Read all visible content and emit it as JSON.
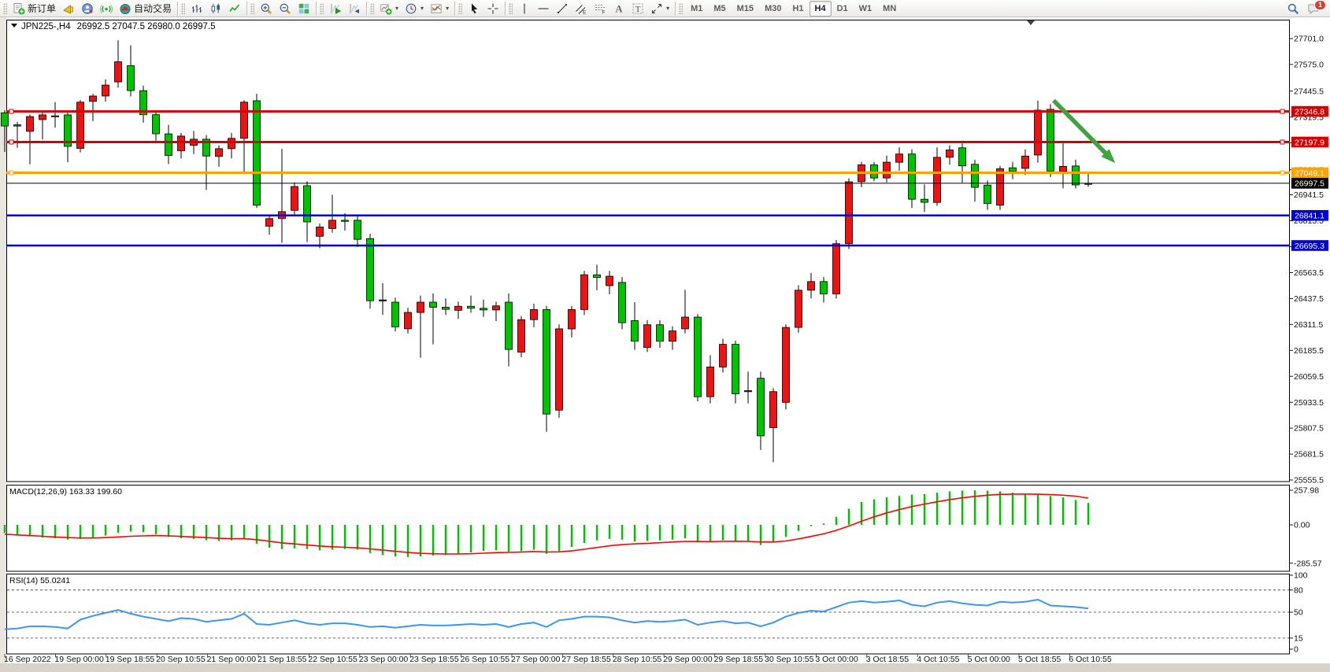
{
  "toolbar": {
    "groups": [
      {
        "items": [
          {
            "name": "new-order-button",
            "icon": "new-order-icon",
            "label": "新订单"
          },
          {
            "name": "alerts-button",
            "icon": "horn-icon"
          },
          {
            "name": "community-button",
            "icon": "community-icon"
          },
          {
            "name": "signals-button",
            "icon": "signal-icon"
          },
          {
            "name": "autotrading-button",
            "icon": "autotrading-icon",
            "label": "自动交易"
          }
        ]
      },
      {
        "items": [
          {
            "name": "bar-chart-button",
            "icon": "bars-icon"
          },
          {
            "name": "candlestick-button",
            "icon": "candles-icon"
          },
          {
            "name": "line-chart-button",
            "icon": "linechart-icon"
          }
        ]
      },
      {
        "items": [
          {
            "name": "zoom-in-button",
            "icon": "zoom-in-icon"
          },
          {
            "name": "zoom-out-button",
            "icon": "zoom-out-icon"
          },
          {
            "name": "tile-windows-button",
            "icon": "tiles-icon"
          }
        ]
      },
      {
        "items": [
          {
            "name": "auto-scroll-button",
            "icon": "autoscroll-icon"
          },
          {
            "name": "chart-shift-button",
            "icon": "chartshift-icon"
          }
        ]
      },
      {
        "items": [
          {
            "name": "new-chart-button",
            "icon": "chart-plus-icon",
            "caret": true
          },
          {
            "name": "profiles-button",
            "icon": "clock-icon",
            "caret": true
          },
          {
            "name": "indicators-button",
            "icon": "indicator-icon",
            "caret": true
          }
        ]
      },
      {
        "items": [
          {
            "name": "cursor-button",
            "icon": "cursor-icon"
          },
          {
            "name": "crosshair-button",
            "icon": "crosshair-icon"
          }
        ]
      },
      {
        "items": [
          {
            "name": "vertical-line-button",
            "icon": "vline-icon"
          },
          {
            "name": "horizontal-line-button",
            "icon": "hline-icon"
          },
          {
            "name": "trendline-button",
            "icon": "trendline-icon"
          },
          {
            "name": "channel-button",
            "icon": "channel-icon"
          },
          {
            "name": "fibonacci-button",
            "icon": "fibo-icon"
          },
          {
            "name": "text-button",
            "icon": "text-a-icon"
          },
          {
            "name": "label-button",
            "icon": "label-t-icon"
          },
          {
            "name": "shapes-button",
            "icon": "arrows-icon",
            "caret": true
          }
        ]
      }
    ],
    "timeframes": {
      "items": [
        "M1",
        "M5",
        "M15",
        "M30",
        "H1",
        "H4",
        "D1",
        "W1",
        "MN"
      ],
      "active": "H4"
    },
    "right": [
      {
        "name": "search-button",
        "icon": "search-icon"
      },
      {
        "name": "chat-button",
        "icon": "chat-icon",
        "badge": "1"
      }
    ]
  },
  "chart": {
    "title_symbol": "JPN225-,H4",
    "title_ohlc": "26992.5 27047.5 26980.0 26997.5"
  },
  "chart_data": [
    {
      "type": "candlestick",
      "title": "JPN225-,H4 26992.5 27047.5 26980.0 26997.5",
      "symbol": "JPN225-",
      "period": "H4",
      "current_bar": {
        "open": 26992.5,
        "high": 27047.5,
        "low": 26980.0,
        "close": 26997.5
      },
      "ylim": [
        25555.5,
        27701.0
      ],
      "y_ticks": [
        27701.0,
        27575.0,
        27445.5,
        27319.5,
        27193.5,
        27063.5,
        26941.5,
        26815.5,
        26689.5,
        26563.5,
        26437.5,
        26311.5,
        26185.5,
        26059.5,
        25933.5,
        25807.5,
        25681.5,
        25555.5
      ],
      "x_labels": [
        "16 Sep 2022",
        "19 Sep 00:00",
        "19 Sep 18:55",
        "20 Sep 10:55",
        "21 Sep 00:00",
        "21 Sep 18:55",
        "22 Sep 10:55",
        "23 Sep 00:00",
        "23 Sep 18:55",
        "26 Sep 10:55",
        "27 Sep 00:00",
        "27 Sep 18:55",
        "28 Sep 10:55",
        "29 Sep 00:00",
        "29 Sep 18:55",
        "30 Sep 10:55",
        "3 Oct 00:00",
        "3 Oct 18:55",
        "4 Oct 10:55",
        "5 Oct 00:00",
        "5 Oct 18:55",
        "6 Oct 10:55"
      ],
      "up_color": "#ed1313",
      "down_color": "#00c300",
      "wick_color": "#000000",
      "grid": false,
      "candles": [
        [
          27340,
          27352,
          27150,
          27276
        ],
        [
          27276,
          27296,
          27170,
          27282
        ],
        [
          27250,
          27332,
          27090,
          27322
        ],
        [
          27307,
          27342,
          27210,
          27330
        ],
        [
          27326,
          27392,
          27268,
          27324
        ],
        [
          27330,
          27352,
          27100,
          27177
        ],
        [
          27167,
          27402,
          27148,
          27392
        ],
        [
          27396,
          27432,
          27300,
          27422
        ],
        [
          27422,
          27502,
          27394,
          27475
        ],
        [
          27490,
          27693,
          27462,
          27588
        ],
        [
          27569,
          27668,
          27420,
          27448
        ],
        [
          27448,
          27472,
          27292,
          27331
        ],
        [
          27331,
          27352,
          27205,
          27238
        ],
        [
          27238,
          27282,
          27091,
          27133
        ],
        [
          27155,
          27242,
          27118,
          27227
        ],
        [
          27182,
          27252,
          27140,
          27212
        ],
        [
          27212,
          27232,
          26965,
          27130
        ],
        [
          27128,
          27182,
          27078,
          27166
        ],
        [
          27166,
          27242,
          27118,
          27216
        ],
        [
          27216,
          27402,
          27042,
          27392
        ],
        [
          27399,
          27432,
          26878,
          26891
        ],
        [
          26789,
          26842,
          26748,
          26826
        ],
        [
          26826,
          27164,
          26708,
          26860
        ],
        [
          26866,
          27002,
          26838,
          26982
        ],
        [
          26986,
          27008,
          26712,
          26810
        ],
        [
          26740,
          26802,
          26682,
          26785
        ],
        [
          26778,
          26942,
          26758,
          26818
        ],
        [
          26818,
          26852,
          26768,
          26814
        ],
        [
          26818,
          26842,
          26688,
          26725
        ],
        [
          26729,
          26752,
          26388,
          26427
        ],
        [
          26427,
          26512,
          26358,
          26431
        ],
        [
          26420,
          26442,
          26278,
          26300
        ],
        [
          26290,
          26392,
          26268,
          26370
        ],
        [
          26370,
          26452,
          26150,
          26420
        ],
        [
          26420,
          26462,
          26215,
          26395
        ],
        [
          26395,
          26438,
          26358,
          26385
        ],
        [
          26380,
          26422,
          26338,
          26400
        ],
        [
          26400,
          26452,
          26368,
          26390
        ],
        [
          26390,
          26432,
          26348,
          26382
        ],
        [
          26382,
          26422,
          26328,
          26402
        ],
        [
          26420,
          26462,
          26108,
          26190
        ],
        [
          26177,
          26352,
          26152,
          26335
        ],
        [
          26335,
          26412,
          26298,
          26384
        ],
        [
          26384,
          26402,
          25790,
          25876
        ],
        [
          25895,
          26312,
          25858,
          26290
        ],
        [
          26290,
          26402,
          26248,
          26384
        ],
        [
          26384,
          26572,
          26358,
          26553
        ],
        [
          26553,
          26602,
          26478,
          26540
        ],
        [
          26500,
          26572,
          26458,
          26546
        ],
        [
          26516,
          26542,
          26288,
          26320
        ],
        [
          26330,
          26420,
          26188,
          26230
        ],
        [
          26200,
          26332,
          26178,
          26310
        ],
        [
          26310,
          26332,
          26198,
          26230
        ],
        [
          26230,
          26302,
          26188,
          26280
        ],
        [
          26290,
          26480,
          26268,
          26347
        ],
        [
          26347,
          26362,
          25938,
          25960
        ],
        [
          25960,
          26162,
          25928,
          26105
        ],
        [
          26105,
          26242,
          26078,
          26215
        ],
        [
          26215,
          26232,
          25928,
          25975
        ],
        [
          25985,
          26082,
          25928,
          25990
        ],
        [
          26050,
          26082,
          25702,
          25770
        ],
        [
          25810,
          26002,
          25642,
          25985
        ],
        [
          25933,
          26312,
          25898,
          26297
        ],
        [
          26297,
          26502,
          26272,
          26478
        ],
        [
          26478,
          26562,
          26438,
          26520
        ],
        [
          26520,
          26542,
          26418,
          26460
        ],
        [
          26460,
          26722,
          26438,
          26704
        ],
        [
          26704,
          27022,
          26678,
          27005
        ],
        [
          27005,
          27102,
          26978,
          27087
        ],
        [
          27087,
          27102,
          27008,
          27023
        ],
        [
          27023,
          27132,
          27002,
          27100
        ],
        [
          27100,
          27172,
          27058,
          27140
        ],
        [
          27140,
          27162,
          26878,
          26920
        ],
        [
          26920,
          26992,
          26858,
          26905
        ],
        [
          26905,
          27172,
          26888,
          27124
        ],
        [
          27124,
          27182,
          27088,
          27160
        ],
        [
          27170,
          27192,
          27000,
          27082
        ],
        [
          27090,
          27112,
          26908,
          26978
        ],
        [
          26989,
          27012,
          26868,
          26899
        ],
        [
          26891,
          27082,
          26868,
          27068
        ],
        [
          27073,
          27102,
          27018,
          27055
        ],
        [
          27070,
          27162,
          27038,
          27130
        ],
        [
          27135,
          27400,
          27098,
          27353
        ],
        [
          27357,
          27382,
          27028,
          27057
        ],
        [
          27055,
          27192,
          26973,
          27080
        ],
        [
          27082,
          27112,
          26973,
          26990
        ],
        [
          26992.5,
          27047.5,
          26980.0,
          26997.5
        ]
      ],
      "hlines": [
        {
          "price": 27346.8,
          "label": "27346.8",
          "color": "#d80000",
          "width": 3,
          "handles": true
        },
        {
          "price": 27197.9,
          "label": "27197.9",
          "color": "#d80000",
          "width": 3,
          "handles": true
        },
        {
          "price": 27049.1,
          "label": "27049.1",
          "color": "#ffa200",
          "width": 3,
          "handles": true
        },
        {
          "price": 26841.1,
          "label": "26841.1",
          "color": "#0000d8",
          "width": 2.5,
          "handles": false
        },
        {
          "price": 26695.3,
          "label": "26695.3",
          "color": "#0000d8",
          "width": 2.5,
          "handles": false
        }
      ],
      "current_price_line": {
        "price": 26997.5,
        "label": "26997.5",
        "color": "#000000",
        "width": 1
      },
      "annotations": [
        {
          "type": "arrow",
          "color": "#3fa33f",
          "from_price": 27400,
          "to_price": 27090,
          "note": "bearish rejection arrow"
        }
      ]
    },
    {
      "type": "macd",
      "label": "MACD(12,26,9) 163.33 199.60",
      "params": [
        12,
        26,
        9
      ],
      "last_values": {
        "macd": 163.33,
        "signal": 199.6
      },
      "y_ticks": [
        257.98,
        0.0,
        -285.57
      ],
      "histogram_color": "#00c300",
      "signal_color": "#ff0000",
      "histogram": [
        -60,
        -75,
        -85,
        -95,
        -100,
        -110,
        -105,
        -95,
        -80,
        -60,
        -50,
        -55,
        -70,
        -90,
        -100,
        -105,
        -115,
        -120,
        -115,
        -100,
        -140,
        -170,
        -180,
        -175,
        -180,
        -190,
        -185,
        -180,
        -185,
        -210,
        -225,
        -235,
        -240,
        -235,
        -230,
        -225,
        -215,
        -205,
        -195,
        -190,
        -200,
        -195,
        -185,
        -215,
        -195,
        -165,
        -135,
        -115,
        -105,
        -110,
        -125,
        -120,
        -115,
        -110,
        -100,
        -130,
        -130,
        -115,
        -120,
        -125,
        -150,
        -130,
        -90,
        -45,
        -10,
        10,
        60,
        120,
        170,
        190,
        205,
        215,
        225,
        230,
        240,
        250,
        255,
        258,
        255,
        250,
        240,
        230,
        225,
        215,
        205,
        185,
        163.33
      ],
      "signal": [
        -70,
        -75,
        -80,
        -85,
        -90,
        -95,
        -98,
        -98,
        -95,
        -90,
        -85,
        -82,
        -80,
        -82,
        -86,
        -90,
        -95,
        -100,
        -103,
        -103,
        -110,
        -122,
        -134,
        -142,
        -150,
        -158,
        -163,
        -167,
        -171,
        -179,
        -188,
        -197,
        -206,
        -212,
        -215,
        -217,
        -217,
        -215,
        -211,
        -207,
        -205,
        -203,
        -199,
        -202,
        -201,
        -194,
        -182,
        -169,
        -156,
        -147,
        -142,
        -138,
        -133,
        -128,
        -123,
        -124,
        -125,
        -123,
        -122,
        -123,
        -128,
        -128,
        -120,
        -105,
        -86,
        -67,
        -41,
        -9,
        27,
        60,
        89,
        114,
        136,
        155,
        172,
        188,
        201,
        212,
        221,
        227,
        229,
        229,
        228,
        225,
        221,
        214,
        199.6
      ]
    },
    {
      "type": "rsi",
      "label": "RSI(14) 55.0241",
      "period": 14,
      "last_value": 55.0241,
      "y_ticks": [
        100,
        80,
        50,
        15,
        0
      ],
      "levels": [
        80,
        50,
        15
      ],
      "line_color": "#3a96f4",
      "values": [
        27,
        28,
        31,
        31,
        30,
        28,
        40,
        45,
        49,
        53,
        48,
        44,
        41,
        38,
        42,
        41,
        37,
        39,
        41,
        48,
        34,
        33,
        36,
        39,
        35,
        33,
        35,
        35,
        33,
        30,
        31,
        29,
        31,
        33,
        32,
        32,
        33,
        34,
        33,
        34,
        30,
        34,
        36,
        30,
        39,
        41,
        44,
        44,
        43,
        39,
        36,
        38,
        37,
        38,
        40,
        33,
        36,
        38,
        35,
        36,
        31,
        36,
        44,
        49,
        52,
        51,
        57,
        63,
        65,
        63,
        64,
        66,
        60,
        58,
        63,
        65,
        62,
        60,
        59,
        64,
        63,
        64,
        67,
        59,
        58,
        57,
        55.02
      ]
    }
  ]
}
